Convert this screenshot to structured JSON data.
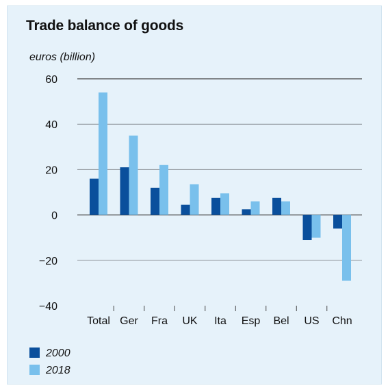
{
  "chart_data": {
    "type": "bar",
    "title": "Trade balance of goods",
    "ylabel": "euros (billion)",
    "xlabel": "",
    "categories": [
      "Total",
      "Ger",
      "Fra",
      "UK",
      "Ita",
      "Esp",
      "Bel",
      "US",
      "Chn"
    ],
    "series": [
      {
        "name": "2000",
        "color": "#0a4f9c",
        "values": [
          16,
          21,
          12,
          4.5,
          7.5,
          2.5,
          7.5,
          -11,
          -6
        ]
      },
      {
        "name": "2018",
        "color": "#79c0ec",
        "values": [
          54,
          35,
          22,
          13.5,
          9.5,
          6,
          6,
          -10,
          -29
        ]
      }
    ],
    "ylim": [
      -40,
      60
    ],
    "yticks": [
      "60",
      "40",
      "20",
      "0",
      "−20",
      "−40"
    ],
    "ytick_values": [
      60,
      40,
      20,
      0,
      -20,
      -40
    ],
    "grid": true,
    "legend_position": "bottom-left"
  }
}
